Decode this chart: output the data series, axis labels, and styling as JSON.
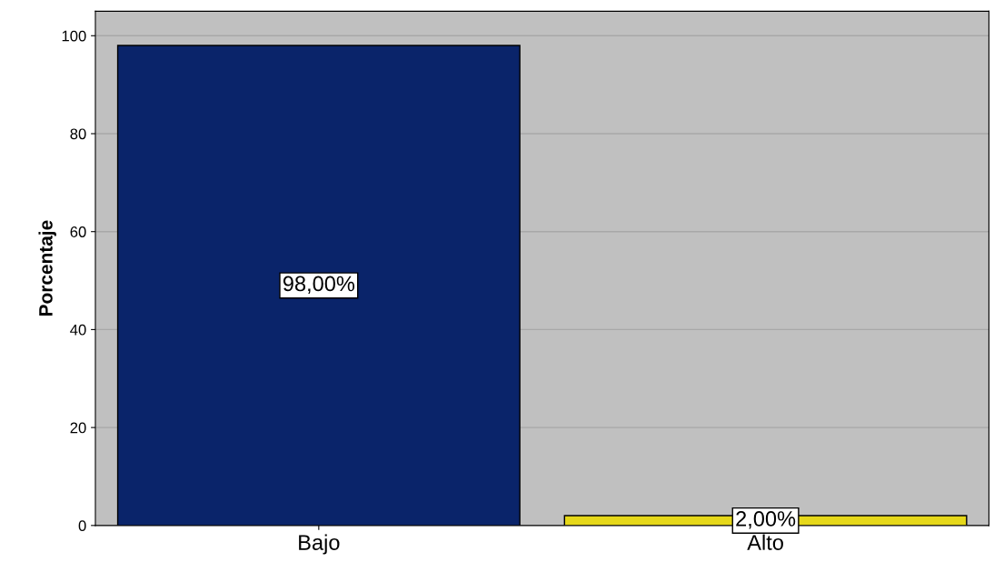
{
  "chart_data": {
    "type": "bar",
    "ylabel": "Porcentaje",
    "categories": [
      "Bajo",
      "Alto"
    ],
    "values": [
      98,
      2
    ],
    "colors": [
      "#0a246a",
      "#e6d81a"
    ],
    "value_labels": [
      "98,00%",
      "2,00%"
    ],
    "ylim": [
      0,
      105
    ],
    "yticks": [
      0,
      20,
      40,
      60,
      80,
      100
    ],
    "grid": "y"
  }
}
